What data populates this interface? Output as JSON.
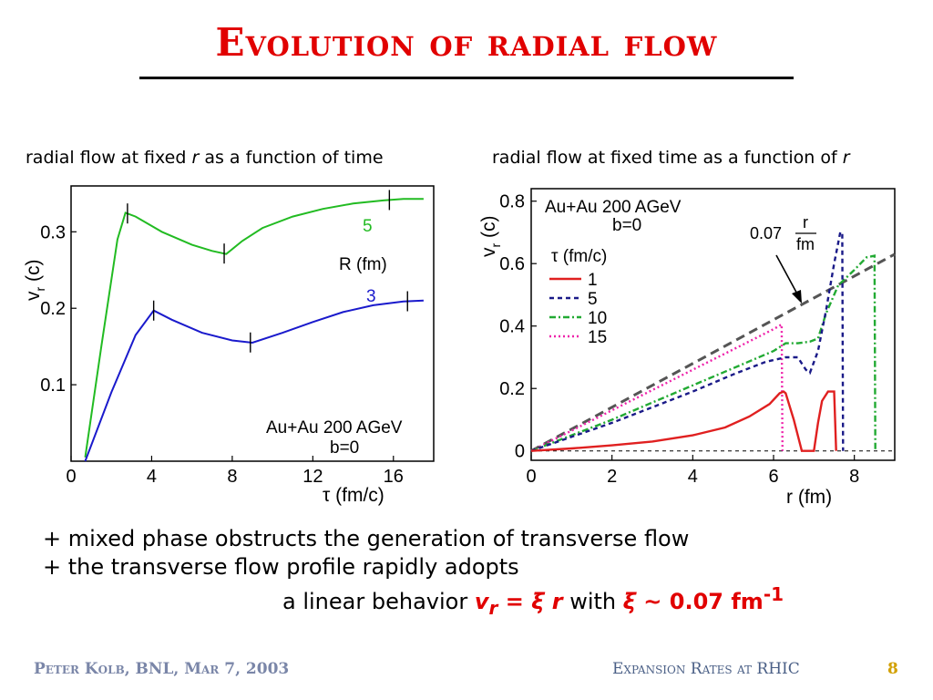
{
  "slide": {
    "title": "Evolution of radial flow",
    "caption_left": {
      "pre": "radial flow at fixed ",
      "italic": "r",
      "post": " as a function of time"
    },
    "caption_right": {
      "pre": "radial flow at fixed time as a function of ",
      "italic": "r"
    },
    "bullets": [
      "+ mixed phase obstructs the generation of transverse flow",
      "+ the transverse flow profile rapidly adopts"
    ],
    "formula": {
      "pre": "a linear behavior ",
      "lhs": "v",
      "lhs_sub": "r",
      "eq": " = ",
      "xi": "ξ",
      "r": " r",
      "with": " with ",
      "xi2": "ξ",
      "tilde": " ~ ",
      "value": "0.07 fm",
      "sup": "-1"
    },
    "footer_left": "Peter Kolb, BNL, Mar 7, 2003",
    "footer_right": "Expansion Rates at RHIC",
    "page_number": "8"
  },
  "chart_data": [
    {
      "type": "line",
      "xlabel": "τ (fm/c)",
      "ylabel": "vr (c)",
      "xlim": [
        0,
        18
      ],
      "ylim": [
        0,
        0.36
      ],
      "xticks": [
        "0",
        "4",
        "8",
        "12",
        "16"
      ],
      "yticks": [
        "0.1",
        "0.2",
        "0.3"
      ],
      "annotation": [
        "Au+Au 200 AGeV",
        "b=0"
      ],
      "legend_title": "R (fm)",
      "series": [
        {
          "name": "5",
          "color": "#22bb22",
          "x": [
            0.7,
            1.5,
            2.3,
            2.7,
            3.2,
            4.5,
            6,
            7,
            7.7,
            8.5,
            9.5,
            11,
            12.5,
            14,
            15.5,
            16.5,
            17.5
          ],
          "y": [
            0.005,
            0.15,
            0.29,
            0.325,
            0.32,
            0.3,
            0.283,
            0.275,
            0.271,
            0.288,
            0.305,
            0.32,
            0.33,
            0.337,
            0.341,
            0.343,
            0.343
          ]
        },
        {
          "name": "3",
          "color": "#1a1acc",
          "x": [
            0.7,
            2,
            3.2,
            4.1,
            5,
            6.5,
            8,
            9,
            10.5,
            12,
            13.5,
            15,
            16.5,
            17.5
          ],
          "y": [
            0.0,
            0.09,
            0.165,
            0.197,
            0.185,
            0.168,
            0.158,
            0.155,
            0.168,
            0.182,
            0.195,
            0.204,
            0.209,
            0.21
          ]
        }
      ],
      "tick_marks": [
        {
          "series": "5",
          "x": [
            2.8,
            7.6,
            15.8
          ]
        },
        {
          "series": "3",
          "x": [
            4.1,
            8.9,
            16.7
          ]
        }
      ]
    },
    {
      "type": "line",
      "xlabel": "r (fm)",
      "ylabel": "vr (c)",
      "xlim": [
        0,
        9
      ],
      "ylim": [
        -0.03,
        0.84
      ],
      "xticks": [
        "0",
        "2",
        "4",
        "6",
        "8"
      ],
      "yticks": [
        "0",
        "0.2",
        "0.4",
        "0.6",
        "0.8"
      ],
      "annotation": [
        "Au+Au 200 AGeV",
        "b=0"
      ],
      "legend_title": "τ (fm/c)",
      "reference_line": {
        "label_num": "r",
        "label_pre": "0.07",
        "label_den": "fm",
        "slope": 0.07,
        "color": "#555555"
      },
      "series": [
        {
          "name": "1",
          "color": "#e02020",
          "x": [
            0,
            1,
            2,
            3,
            4,
            4.8,
            5.4,
            5.9,
            6.15,
            6.25,
            6.3,
            6.5,
            6.7,
            6.8,
            7.0,
            7.1,
            7.2,
            7.35,
            7.5,
            7.55
          ],
          "y": [
            0,
            0.008,
            0.018,
            0.03,
            0.05,
            0.075,
            0.11,
            0.15,
            0.185,
            0.19,
            0.185,
            0.1,
            0.0,
            0.0,
            0.0,
            0.09,
            0.16,
            0.19,
            0.19,
            0.0
          ]
        },
        {
          "name": "5",
          "color": "#1a1a88",
          "x": [
            0,
            1,
            2,
            3,
            4,
            5,
            5.8,
            6.3,
            6.6,
            6.8,
            6.9,
            7.1,
            7.3,
            7.5,
            7.65,
            7.7,
            7.72
          ],
          "y": [
            0,
            0.045,
            0.09,
            0.14,
            0.19,
            0.245,
            0.285,
            0.3,
            0.3,
            0.26,
            0.25,
            0.32,
            0.45,
            0.6,
            0.7,
            0.7,
            0.0
          ]
        },
        {
          "name": "10",
          "color": "#22aa33",
          "x": [
            0,
            1,
            2,
            3,
            4,
            5,
            6,
            6.3,
            6.6,
            6.9,
            7.1,
            7.3,
            7.6,
            8.0,
            8.3,
            8.5,
            8.52
          ],
          "y": [
            0,
            0.05,
            0.1,
            0.155,
            0.21,
            0.265,
            0.32,
            0.345,
            0.345,
            0.35,
            0.36,
            0.44,
            0.53,
            0.58,
            0.62,
            0.625,
            0.0
          ]
        },
        {
          "name": "15",
          "color": "#ee22aa",
          "x": [
            0,
            1,
            2,
            3,
            4,
            5,
            6,
            6.2,
            6.22
          ],
          "y": [
            0,
            0.065,
            0.13,
            0.195,
            0.26,
            0.325,
            0.39,
            0.405,
            0.0
          ]
        }
      ]
    }
  ]
}
